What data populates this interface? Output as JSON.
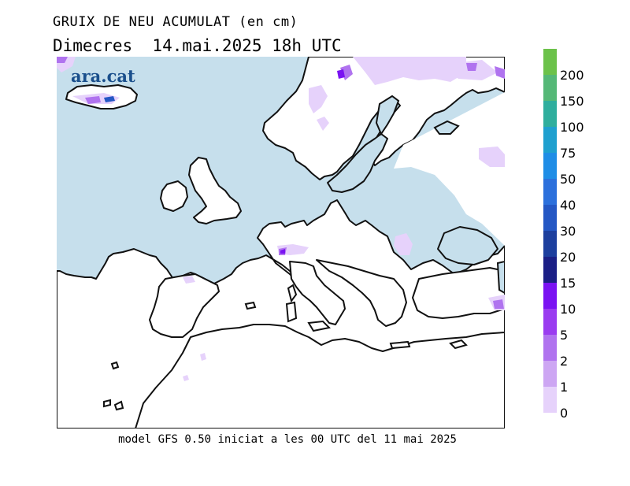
{
  "header": {
    "title": "GRUIX DE NEU ACUMULAT (en cm)",
    "date_line": "Dimecres  14.mai.2025 18h UTC"
  },
  "logo": {
    "text": "ara.cat"
  },
  "footer": {
    "text": "model GFS 0.50 iniciat a les 00 UTC del 11 mai 2025"
  },
  "colors": {
    "sea": "#c6dfec",
    "land": "#ffffff",
    "coast": "#111111"
  },
  "legend": {
    "items": [
      {
        "label": "200",
        "color": "#6cc24a"
      },
      {
        "label": "150",
        "color": "#55b877"
      },
      {
        "label": "100",
        "color": "#2fae9d"
      },
      {
        "label": "75",
        "color": "#1fa0cf"
      },
      {
        "label": "50",
        "color": "#1f8de6"
      },
      {
        "label": "40",
        "color": "#2c70dc"
      },
      {
        "label": "30",
        "color": "#2457c4"
      },
      {
        "label": "20",
        "color": "#1d3f9e"
      },
      {
        "label": "15",
        "color": "#1b1f86"
      },
      {
        "label": "10",
        "color": "#7a13f2"
      },
      {
        "label": "5",
        "color": "#9a3cf0"
      },
      {
        "label": "2",
        "color": "#b073ef"
      },
      {
        "label": "1",
        "color": "#cda6f3"
      },
      {
        "label": "0",
        "color": "#e6d2fb"
      }
    ]
  }
}
